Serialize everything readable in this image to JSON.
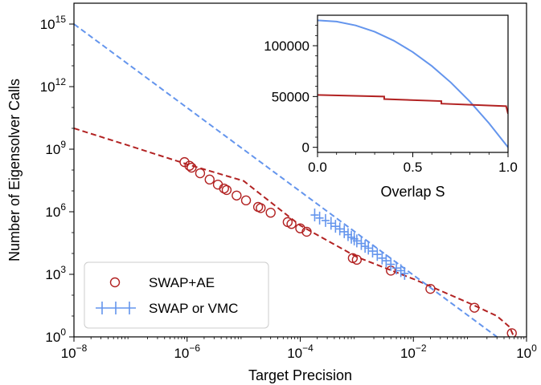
{
  "chart_data": [
    {
      "type": "line",
      "xlabel": "Target Precision",
      "ylabel": "Number of Eigensolver Calls",
      "xscale": "log",
      "yscale": "log",
      "xlim": [
        1e-08,
        1
      ],
      "ylim": [
        1,
        1e+16
      ],
      "x_ticks": [
        {
          "value": 1e-08,
          "base": "10",
          "exp": "−8"
        },
        {
          "value": 1e-06,
          "base": "10",
          "exp": "−6"
        },
        {
          "value": 0.0001,
          "base": "10",
          "exp": "−4"
        },
        {
          "value": 0.01,
          "base": "10",
          "exp": "−2"
        },
        {
          "value": 1,
          "base": "10",
          "exp": "0"
        }
      ],
      "y_ticks": [
        {
          "value": 1,
          "base": "10",
          "exp": "0"
        },
        {
          "value": 1000.0,
          "base": "10",
          "exp": "3"
        },
        {
          "value": 1000000.0,
          "base": "10",
          "exp": "6"
        },
        {
          "value": 1000000000.0,
          "base": "10",
          "exp": "9"
        },
        {
          "value": 1000000000000.0,
          "base": "10",
          "exp": "12"
        },
        {
          "value": 1000000000000000.0,
          "base": "10",
          "exp": "15"
        }
      ],
      "legend_position": "lower-left",
      "series": [
        {
          "name": "SWAP+AE",
          "color": "#b22222",
          "marker": "open-circle",
          "points": [
            [
              9e-07,
              240000000.0
            ],
            [
              1.1e-06,
              160000000.0
            ],
            [
              1.2e-06,
              130000000.0
            ],
            [
              1.7e-06,
              70000000.0
            ],
            [
              2.5e-06,
              35000000.0
            ],
            [
              3.5e-06,
              20000000.0
            ],
            [
              4.5e-06,
              13000000.0
            ],
            [
              5e-06,
              11000000.0
            ],
            [
              7.5e-06,
              6000000.0
            ],
            [
              1.1e-05,
              3500000.0
            ],
            [
              1.8e-05,
              1700000.0
            ],
            [
              2e-05,
              1500000.0
            ],
            [
              3e-05,
              900000.0
            ],
            [
              6e-05,
              320000.0
            ],
            [
              7e-05,
              260000.0
            ],
            [
              0.0001,
              160000.0
            ],
            [
              0.00013,
              110000.0
            ],
            [
              0.00085,
              6000.0
            ],
            [
              0.001,
              5000.0
            ],
            [
              0.004,
              1500.0
            ],
            [
              0.02,
              200
            ],
            [
              0.12,
              25
            ],
            [
              0.55,
              1.5
            ]
          ],
          "curve": [
            [
              1e-08,
              10000000000.0
            ],
            [
              1e-07,
              1400000000.0
            ],
            [
              1e-06,
              190000000.0
            ],
            [
              1e-05,
              30000000.0
            ],
            [
              0.0001,
              220000.0
            ],
            [
              0.001,
              6800.0
            ],
            [
              0.01,
              600
            ],
            [
              0.1,
              40
            ],
            [
              0.3,
              10
            ],
            [
              0.5,
              3
            ],
            [
              0.6,
              1
            ]
          ]
        },
        {
          "name": "SWAP or VMC",
          "color": "#6495ed",
          "marker": "plus",
          "points": [
            [
              0.00018,
              700000.0
            ],
            [
              0.00022,
              500000.0
            ],
            [
              0.00028,
              380000.0
            ],
            [
              0.00035,
              280000.0
            ],
            [
              0.00042,
              200000.0
            ],
            [
              0.0005,
              150000.0
            ],
            [
              0.0006,
              110000.0
            ],
            [
              0.0007,
              80000.0
            ],
            [
              0.0008,
              60000.0
            ],
            [
              0.0009,
              50000.0
            ],
            [
              0.001,
              40000.0
            ],
            [
              0.0012,
              30000.0
            ],
            [
              0.0014,
              22000.0
            ],
            [
              0.0016,
              18000.0
            ],
            [
              0.0019,
              13000.0
            ],
            [
              0.0023,
              9000.0
            ],
            [
              0.0028,
              6000.0
            ],
            [
              0.0033,
              4500.0
            ],
            [
              0.004,
              3000.0
            ],
            [
              0.005,
              2000.0
            ],
            [
              0.006,
              1500.0
            ],
            [
              0.007,
              1100.0
            ]
          ],
          "curve": [
            [
              1e-08,
              1000000000000000.0
            ],
            [
              0.3,
              1
            ]
          ]
        }
      ]
    },
    {
      "type": "line",
      "xlabel": "Overlap S",
      "ylabel": "",
      "xlim": [
        0,
        1
      ],
      "ylim": [
        -5000,
        130000
      ],
      "x_ticks": [
        {
          "value": 0,
          "label": "0.0"
        },
        {
          "value": 0.5,
          "label": "0.5"
        },
        {
          "value": 1,
          "label": "1.0"
        }
      ],
      "y_ticks": [
        {
          "value": 0,
          "label": "0"
        },
        {
          "value": 50000,
          "label": "50000"
        },
        {
          "value": 100000,
          "label": "100000"
        }
      ],
      "series": [
        {
          "name": "SWAP or VMC",
          "color": "#6495ed",
          "points": [
            [
              0,
              125000
            ],
            [
              0.1,
              123750
            ],
            [
              0.2,
              120000
            ],
            [
              0.3,
              113750
            ],
            [
              0.4,
              105000
            ],
            [
              0.5,
              93750
            ],
            [
              0.6,
              80000
            ],
            [
              0.7,
              63750
            ],
            [
              0.8,
              45000
            ],
            [
              0.9,
              23750
            ],
            [
              1,
              0
            ]
          ]
        },
        {
          "name": "SWAP+AE",
          "color": "#b22222",
          "points": [
            [
              0,
              51500
            ],
            [
              0.35,
              50000
            ],
            [
              0.35,
              47500
            ],
            [
              0.65,
              45500
            ],
            [
              0.65,
              43000
            ],
            [
              0.99,
              40500
            ],
            [
              1,
              33000
            ]
          ]
        }
      ]
    }
  ]
}
